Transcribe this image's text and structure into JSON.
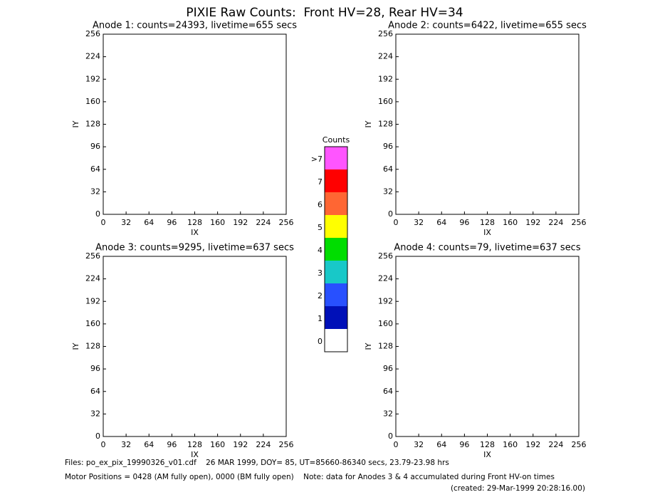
{
  "title": "PIXIE Raw Counts:  Front HV=28, Rear HV=34",
  "chart_data": [
    {
      "type": "heatmap",
      "title": "Anode 1: counts=24393, livetime=655 secs",
      "xlabel": "IX",
      "ylabel": "IY",
      "xlim": [
        0,
        256
      ],
      "xticks": [
        0,
        32,
        64,
        96,
        128,
        160,
        192,
        224,
        256
      ],
      "ylim": [
        0,
        256
      ],
      "yticks": [
        0,
        32,
        64,
        96,
        128,
        160,
        192,
        224,
        256
      ]
    },
    {
      "type": "heatmap",
      "title": "Anode 2: counts=6422, livetime=655 secs",
      "xlabel": "IX",
      "ylabel": "IY",
      "xlim": [
        0,
        256
      ],
      "xticks": [
        0,
        32,
        64,
        96,
        128,
        160,
        192,
        224,
        256
      ],
      "ylim": [
        0,
        256
      ],
      "yticks": [
        0,
        32,
        64,
        96,
        128,
        160,
        192,
        224,
        256
      ]
    },
    {
      "type": "heatmap",
      "title": "Anode 3: counts=9295, livetime=637 secs",
      "xlabel": "IX",
      "ylabel": "IY",
      "xlim": [
        0,
        256
      ],
      "xticks": [
        0,
        32,
        64,
        96,
        128,
        160,
        192,
        224,
        256
      ],
      "ylim": [
        0,
        256
      ],
      "yticks": [
        0,
        32,
        64,
        96,
        128,
        160,
        192,
        224,
        256
      ]
    },
    {
      "type": "heatmap",
      "title": "Anode 4: counts=79, livetime=637 secs",
      "xlabel": "IX",
      "ylabel": "IY",
      "xlim": [
        0,
        256
      ],
      "xticks": [
        0,
        32,
        64,
        96,
        128,
        160,
        192,
        224,
        256
      ],
      "ylim": [
        0,
        256
      ],
      "yticks": [
        0,
        32,
        64,
        96,
        128,
        160,
        192,
        224,
        256
      ]
    }
  ],
  "colorbar": {
    "title": "Counts",
    "labels": [
      "0",
      "1",
      "2",
      "3",
      "4",
      "5",
      "6",
      "7",
      ">7"
    ],
    "colors": [
      "#ffffff",
      "#0010b8",
      "#2850ff",
      "#18c8c8",
      "#00dd00",
      "#ffff00",
      "#ff6633",
      "#ff0000",
      "#ff55ff"
    ]
  },
  "footer": {
    "files": "Files: po_ex_pix_19990326_v01.cdf    26 MAR 1999, DOY= 85, UT=85660-86340 secs, 23.79-23.98 hrs",
    "motor": "Motor Positions = 0428 (AM fully open), 0000 (BM fully open)    Note: data for Anodes 3 & 4 accumulated during Front HV-on times",
    "created": "(created: 29-Mar-1999 20:28:16.00)"
  }
}
